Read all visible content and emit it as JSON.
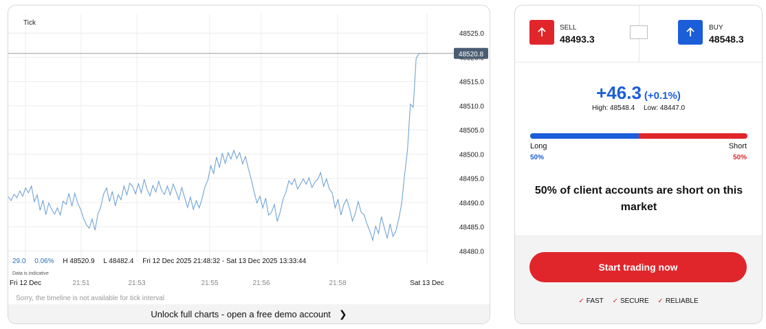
{
  "chart": {
    "interval_label": "Tick",
    "current_price_label": "48520.8",
    "stats": {
      "change": "29.0",
      "change_pct": "0.06%",
      "high": "H 48520.9",
      "low": "L 48482.4",
      "range": "Fri 12 Dec 2025 21:48:32 - Sat 13 Dec 2025 13:33:44"
    },
    "indicative_note": "Data is indicative",
    "timeline_note": "Sorry, the timeline is not available for tick interval",
    "footer_link": "Unlock full charts - open a free demo account",
    "colors": {
      "line": "#6fa3d6",
      "price_badge": "#4b5d72",
      "grid": "#ececec"
    }
  },
  "chart_data": {
    "type": "line",
    "title": "",
    "xlabel": "",
    "ylabel": "",
    "y_ticks": [
      "48525.0",
      "48520.0",
      "48515.0",
      "48510.0",
      "48505.0",
      "48500.0",
      "48495.0",
      "48490.0",
      "48485.0",
      "48480.0"
    ],
    "y_tick_values": [
      48525,
      48520,
      48515,
      48510,
      48505,
      48500,
      48495,
      48490,
      48485,
      48480
    ],
    "x_ticks": [
      "Fri 12 Dec",
      "21:51",
      "21:53",
      "21:55",
      "21:56",
      "21:58",
      "Sat 13 Dec"
    ],
    "ylim": [
      48477.5,
      48529
    ],
    "grid": true,
    "series": [
      {
        "values": [
          48491.2,
          48490.4,
          48491.7,
          48491.0,
          48492.4,
          48491.3,
          48493.0,
          48492.0,
          48493.4,
          48490.2,
          48491.6,
          48488.4,
          48490.5,
          48487.5,
          48489.9,
          48488.6,
          48487.6,
          48488.9,
          48487.4,
          48490.3,
          48489.6,
          48491.9,
          48489.2,
          48491.9,
          48489.9,
          48488.6,
          48486.8,
          48485.4,
          48484.7,
          48486.6,
          48484.3,
          48487.6,
          48489.1,
          48491.8,
          48493.0,
          48490.2,
          48492.3,
          48489.3,
          48491.6,
          48490.6,
          48493.4,
          48491.6,
          48494.0,
          48493.3,
          48491.8,
          48493.9,
          48492.0,
          48494.8,
          48492.7,
          48491.4,
          48493.5,
          48492.2,
          48494.4,
          48492.5,
          48491.7,
          48493.4,
          48491.6,
          48493.8,
          48492.3,
          48490.6,
          48493.1,
          48491.0,
          48489.0,
          48491.1,
          48488.6,
          48490.4,
          48488.9,
          48490.8,
          48493.3,
          48494.6,
          48497.6,
          48496.0,
          48499.4,
          48497.2,
          48500.2,
          48498.1,
          48500.3,
          48499.0,
          48500.8,
          48499.1,
          48500.3,
          48498.0,
          48499.5,
          48497.0,
          48494.8,
          48492.2,
          48489.9,
          48491.3,
          48488.9,
          48490.9,
          48487.4,
          48488.0,
          48489.6,
          48486.1,
          48488.0,
          48490.7,
          48492.2,
          48494.5,
          48493.7,
          48494.9,
          48492.8,
          48493.8,
          48494.9,
          48493.8,
          48495.1,
          48493.1,
          48494.2,
          48494.8,
          48496.2,
          48493.3,
          48494.9,
          48492.8,
          48492.0,
          48488.9,
          48490.7,
          48487.4,
          48489.6,
          48490.7,
          48488.7,
          48486.2,
          48487.8,
          48490.2,
          48488.0,
          48487.5,
          48485.6,
          48484.1,
          48482.2,
          48485.1,
          48483.6,
          48487.1,
          48484.8,
          48482.6,
          48485.6,
          48483.0,
          48484.1,
          48486.6,
          48489.8,
          48495.6,
          48500.8,
          48510.3,
          48509.7,
          48519.8,
          48520.8,
          48520.8,
          48520.8,
          48520.8
        ]
      }
    ]
  },
  "trade": {
    "sell_label": "SELL",
    "sell_price": "48493.3",
    "buy_label": "BUY",
    "buy_price": "48548.3",
    "change": "+46.3",
    "change_pct": "(+0.1%)",
    "high": "High: 48548.4",
    "low": "Low: 48447.0",
    "long_label": "Long",
    "short_label": "Short",
    "long_pct": "50%",
    "short_pct": "50%",
    "long_fraction": 0.5,
    "sentiment_text": "50% of client accounts are short on this market",
    "cta_label": "Start trading now",
    "features": [
      "FAST",
      "SECURE",
      "RELIABLE"
    ],
    "colors": {
      "sell": "#e0262b",
      "buy": "#1b5ed8",
      "cta": "#e0262b"
    },
    "icons": {
      "sell": "arrow-up-icon",
      "buy": "arrow-up-icon",
      "feature": "check-icon"
    }
  }
}
